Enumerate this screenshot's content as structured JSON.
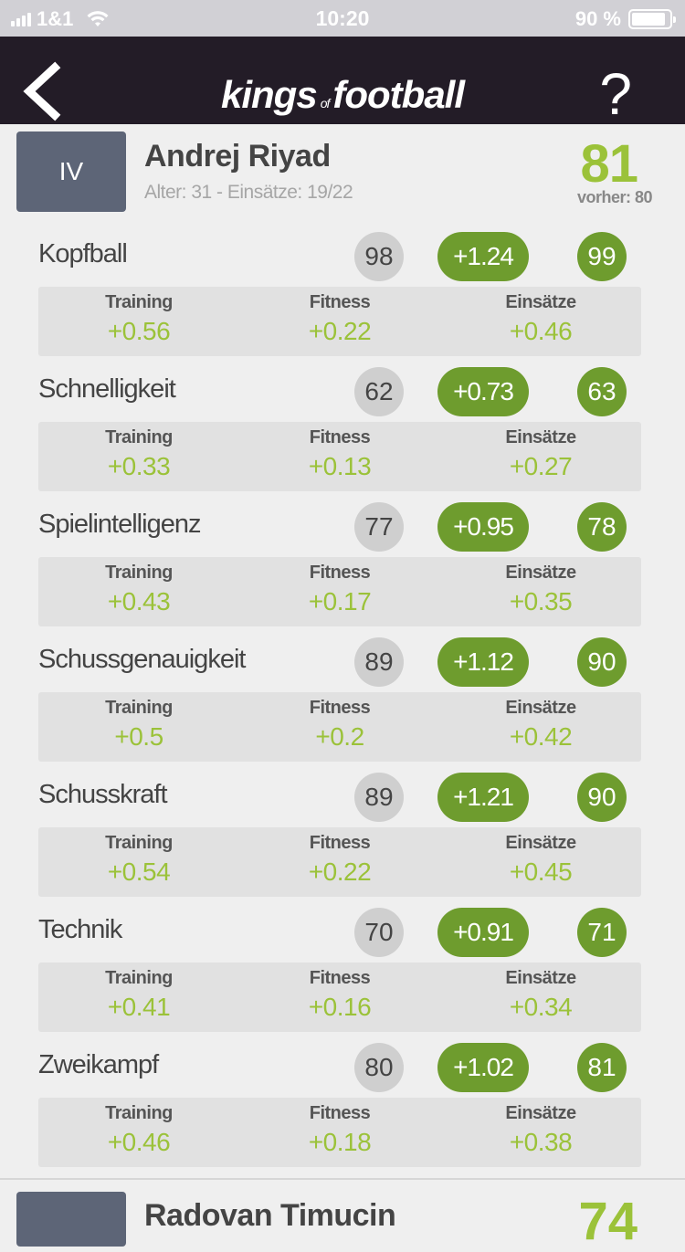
{
  "status_bar": {
    "carrier": "1&1",
    "time": "10:20",
    "battery": "90 %",
    "battery_level": 0.9
  },
  "nav": {
    "logo_left": "kings",
    "logo_mid": "of",
    "logo_right": "football",
    "help_label": "?"
  },
  "player": {
    "position": "IV",
    "name": "Andrej Riyad",
    "subtitle": "Alter: 31 - Einsätze: 19/22",
    "overall": "81",
    "previous": "vorher: 80"
  },
  "labels": {
    "training": "Training",
    "fitness": "Fitness",
    "einsaetze": "Einsätze"
  },
  "skills": [
    {
      "name": "Kopfball",
      "old": "98",
      "delta": "+1.24",
      "new": "99",
      "training": "+0.56",
      "fitness": "+0.22",
      "einsaetze": "+0.46"
    },
    {
      "name": "Schnelligkeit",
      "old": "62",
      "delta": "+0.73",
      "new": "63",
      "training": "+0.33",
      "fitness": "+0.13",
      "einsaetze": "+0.27"
    },
    {
      "name": "Spielintelligenz",
      "old": "77",
      "delta": "+0.95",
      "new": "78",
      "training": "+0.43",
      "fitness": "+0.17",
      "einsaetze": "+0.35"
    },
    {
      "name": "Schussgenauigkeit",
      "old": "89",
      "delta": "+1.12",
      "new": "90",
      "training": "+0.5",
      "fitness": "+0.2",
      "einsaetze": "+0.42"
    },
    {
      "name": "Schusskraft",
      "old": "89",
      "delta": "+1.21",
      "new": "90",
      "training": "+0.54",
      "fitness": "+0.22",
      "einsaetze": "+0.45"
    },
    {
      "name": "Technik",
      "old": "70",
      "delta": "+0.91",
      "new": "71",
      "training": "+0.41",
      "fitness": "+0.16",
      "einsaetze": "+0.34"
    },
    {
      "name": "Zweikampf",
      "old": "80",
      "delta": "+1.02",
      "new": "81",
      "training": "+0.46",
      "fitness": "+0.18",
      "einsaetze": "+0.38"
    }
  ],
  "next_player": {
    "name": "Radovan Timucin",
    "overall": "74"
  }
}
